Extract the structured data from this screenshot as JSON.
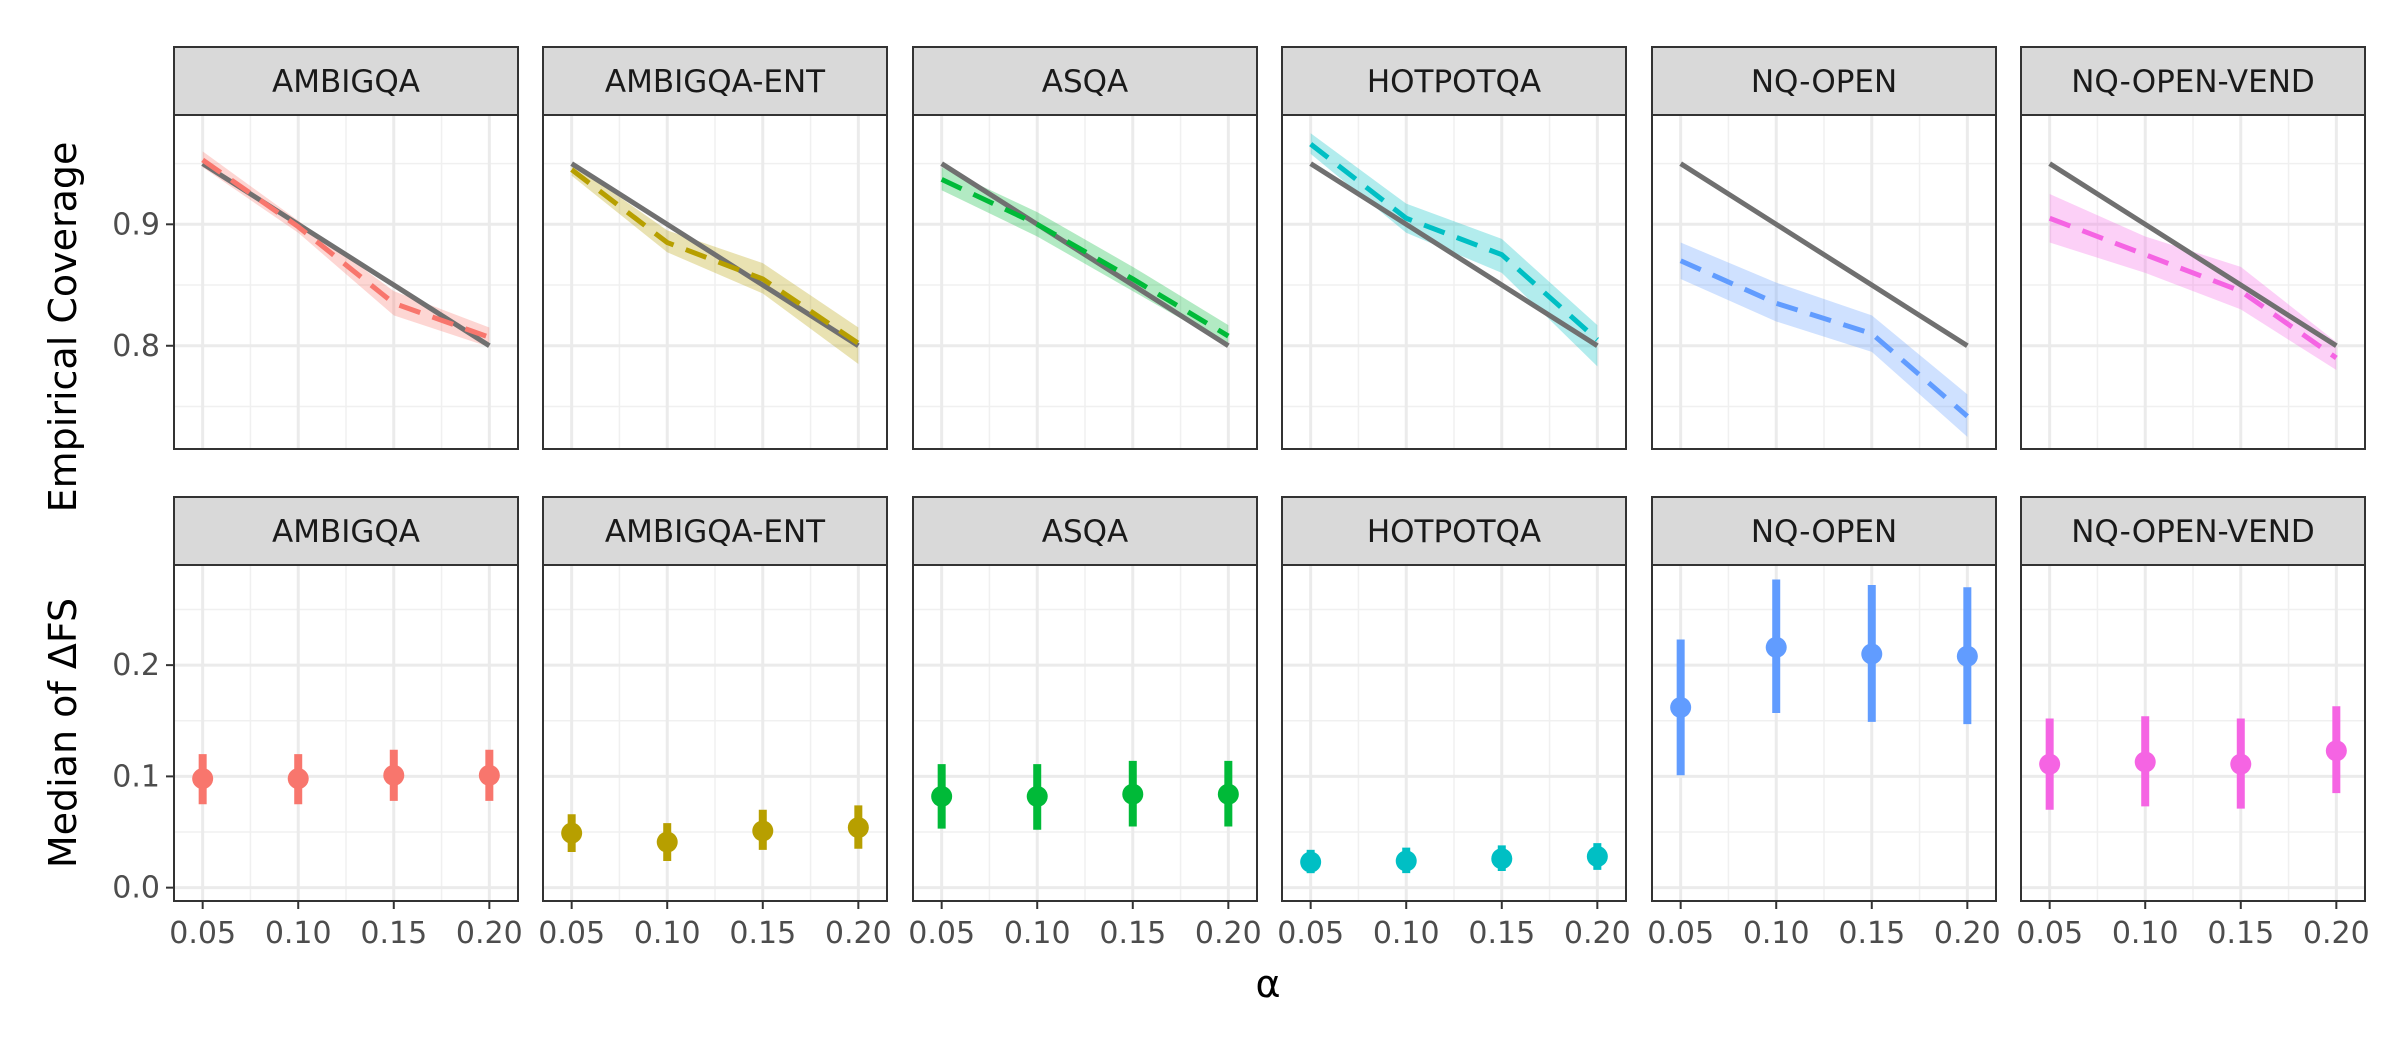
{
  "chart_data": {
    "type": "faceted",
    "xlabel": "α",
    "x_ticks": [
      "0.05",
      "0.10",
      "0.15",
      "0.20"
    ],
    "x": [
      0.05,
      0.1,
      0.15,
      0.2
    ],
    "xlim": [
      0.035,
      0.215
    ],
    "facets": [
      "AMBIGQA",
      "AMBIGQA-ENT",
      "ASQA",
      "HOTPOTQA",
      "NQ-OPEN",
      "NQ-OPEN-VEND"
    ],
    "colors": {
      "AMBIGQA": "#F8766D",
      "AMBIGQA-ENT": "#B79F00",
      "ASQA": "#00BA38",
      "HOTPOTQA": "#00BFC4",
      "NQ-OPEN": "#619CFF",
      "NQ-OPEN-VEND": "#F564E3"
    },
    "reference_color": "#707070",
    "coverage": {
      "type": "line",
      "ylabel": "Empirical Coverage",
      "ylim": [
        0.715,
        0.99
      ],
      "y_ticks": [
        "0.8",
        "0.9"
      ],
      "y_tick_values": [
        0.8,
        0.9
      ],
      "reference": [
        0.95,
        0.9,
        0.85,
        0.8
      ],
      "series": [
        {
          "facet": "AMBIGQA",
          "values": [
            0.953,
            0.898,
            0.835,
            0.807
          ],
          "lower": [
            0.947,
            0.893,
            0.825,
            0.799
          ],
          "upper": [
            0.96,
            0.903,
            0.845,
            0.815
          ]
        },
        {
          "facet": "AMBIGQA-ENT",
          "values": [
            0.945,
            0.885,
            0.855,
            0.802
          ],
          "lower": [
            0.94,
            0.877,
            0.843,
            0.785
          ],
          "upper": [
            0.95,
            0.895,
            0.868,
            0.815
          ]
        },
        {
          "facet": "ASQA",
          "values": [
            0.937,
            0.9,
            0.855,
            0.808
          ],
          "lower": [
            0.928,
            0.89,
            0.845,
            0.8
          ],
          "upper": [
            0.947,
            0.91,
            0.865,
            0.817
          ]
        },
        {
          "facet": "HOTPOTQA",
          "values": [
            0.966,
            0.905,
            0.875,
            0.805
          ],
          "lower": [
            0.958,
            0.893,
            0.86,
            0.783
          ],
          "upper": [
            0.975,
            0.917,
            0.888,
            0.817
          ]
        },
        {
          "facet": "NQ-OPEN",
          "values": [
            0.87,
            0.835,
            0.81,
            0.742
          ],
          "lower": [
            0.855,
            0.82,
            0.795,
            0.725
          ],
          "upper": [
            0.885,
            0.852,
            0.825,
            0.76
          ]
        },
        {
          "facet": "NQ-OPEN-VEND",
          "values": [
            0.905,
            0.875,
            0.845,
            0.79
          ],
          "lower": [
            0.885,
            0.86,
            0.83,
            0.78
          ],
          "upper": [
            0.925,
            0.89,
            0.865,
            0.803
          ]
        }
      ]
    },
    "median_delta_fs": {
      "type": "pointrange",
      "ylabel": "Median of ΔFS",
      "ylim": [
        -0.012,
        0.29
      ],
      "y_ticks": [
        "0.0",
        "0.1",
        "0.2"
      ],
      "y_tick_values": [
        0.0,
        0.1,
        0.2
      ],
      "series": [
        {
          "facet": "AMBIGQA",
          "values": [
            0.098,
            0.098,
            0.101,
            0.101
          ],
          "lower": [
            0.075,
            0.075,
            0.078,
            0.078
          ],
          "upper": [
            0.12,
            0.12,
            0.124,
            0.124
          ]
        },
        {
          "facet": "AMBIGQA-ENT",
          "values": [
            0.049,
            0.041,
            0.051,
            0.054
          ],
          "lower": [
            0.032,
            0.024,
            0.034,
            0.035
          ],
          "upper": [
            0.066,
            0.058,
            0.07,
            0.074
          ]
        },
        {
          "facet": "ASQA",
          "values": [
            0.082,
            0.082,
            0.084,
            0.084
          ],
          "lower": [
            0.053,
            0.052,
            0.055,
            0.055
          ],
          "upper": [
            0.111,
            0.111,
            0.114,
            0.114
          ]
        },
        {
          "facet": "HOTPOTQA",
          "values": [
            0.023,
            0.024,
            0.026,
            0.028
          ],
          "lower": [
            0.013,
            0.013,
            0.015,
            0.016
          ],
          "upper": [
            0.034,
            0.036,
            0.038,
            0.04
          ]
        },
        {
          "facet": "NQ-OPEN",
          "values": [
            0.162,
            0.216,
            0.21,
            0.208
          ],
          "lower": [
            0.101,
            0.157,
            0.149,
            0.147
          ],
          "upper": [
            0.223,
            0.277,
            0.272,
            0.27
          ]
        },
        {
          "facet": "NQ-OPEN-VEND",
          "values": [
            0.111,
            0.113,
            0.111,
            0.123
          ],
          "lower": [
            0.07,
            0.073,
            0.071,
            0.085
          ],
          "upper": [
            0.152,
            0.154,
            0.152,
            0.163
          ]
        }
      ]
    }
  }
}
